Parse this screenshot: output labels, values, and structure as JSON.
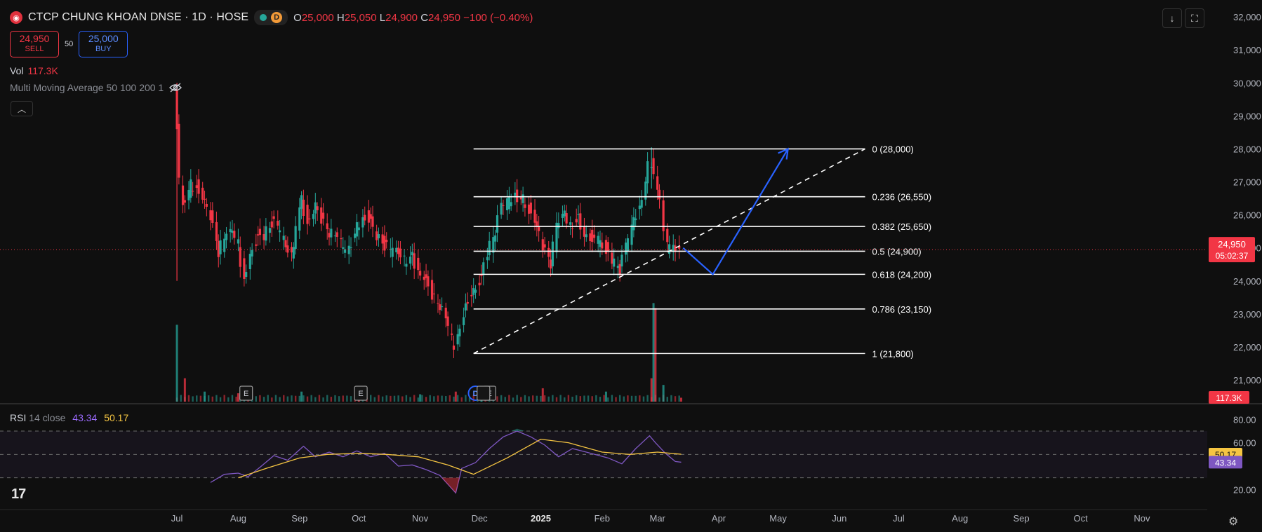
{
  "header": {
    "logo_icon": "dnse-logo-icon",
    "title": "CTCP CHUNG KHOAN DNSE · 1D · HOSE",
    "market_badge": "D",
    "ohlc": {
      "o_label": "O",
      "o": "25,000",
      "h_label": "H",
      "h": "25,050",
      "l_label": "L",
      "l": "24,900",
      "c_label": "C",
      "c": "24,950",
      "change": "−100 (−0.40%)"
    }
  },
  "trade": {
    "sell_price": "24,950",
    "sell_label": "SELL",
    "spread": "50",
    "buy_price": "25,000",
    "buy_label": "BUY"
  },
  "volume_legend": {
    "label": "Vol",
    "value": "117.3K"
  },
  "indicator": {
    "label": "Multi Moving Average 50 100 200 1",
    "visibility_icon": "eye-off-icon"
  },
  "top_buttons": [
    {
      "icon": "download-icon"
    },
    {
      "icon": "fullscreen-icon"
    }
  ],
  "rsi_legend": {
    "label": "RSI",
    "params": "14 close",
    "rsi": "43.34",
    "ma": "50.17"
  },
  "price_axis": [
    "32,000",
    "31,000",
    "30,000",
    "29,000",
    "28,000",
    "27,000",
    "26,000",
    "25,000",
    "24,000",
    "23,000",
    "22,000",
    "21,000"
  ],
  "rsi_axis": [
    "80.00",
    "60.00",
    "20.00"
  ],
  "time_axis": [
    "Jul",
    "Aug",
    "Sep",
    "Oct",
    "Nov",
    "Dec",
    "2025",
    "Feb",
    "Mar",
    "Apr",
    "May",
    "Jun",
    "Jul",
    "Aug",
    "Sep",
    "Oct",
    "Nov"
  ],
  "price_tag": {
    "price": "24,950",
    "countdown": "05:02:37"
  },
  "volume_tag": "117.3K",
  "rsi_tags": {
    "ma": "50.17",
    "rsi": "43.34"
  },
  "event_markers": [
    {
      "text": "E"
    },
    {
      "text": "E"
    },
    {
      "text": "D"
    },
    {
      "text": "E"
    }
  ],
  "colors": {
    "up": "#26a69a",
    "down": "#f23645",
    "rsi": "#7e57c2",
    "rsi_ma": "#f5c542",
    "projection": "#2962ff",
    "accent": "#2962ff"
  },
  "chart_data": {
    "type": "candlestick",
    "title": "CTCP CHUNG KHOAN DNSE · 1D · HOSE",
    "ylim": [
      20300,
      32300
    ],
    "x_range": [
      "2024-06-26",
      "2025-11-28"
    ],
    "price_series": [
      [
        "2024-07-01",
        28700
      ],
      [
        "2024-07-03",
        27000
      ],
      [
        "2024-07-05",
        26300
      ],
      [
        "2024-07-09",
        26900
      ],
      [
        "2024-07-12",
        26900
      ],
      [
        "2024-07-16",
        26500
      ],
      [
        "2024-07-19",
        26000
      ],
      [
        "2024-07-23",
        24900
      ],
      [
        "2024-07-26",
        25200
      ],
      [
        "2024-07-30",
        25500
      ],
      [
        "2024-08-02",
        25100
      ],
      [
        "2024-08-05",
        24000
      ],
      [
        "2024-08-08",
        24900
      ],
      [
        "2024-08-12",
        25400
      ],
      [
        "2024-08-15",
        25400
      ],
      [
        "2024-08-19",
        25800
      ],
      [
        "2024-08-22",
        25600
      ],
      [
        "2024-08-26",
        25000
      ],
      [
        "2024-08-29",
        24700
      ],
      [
        "2024-09-03",
        26500
      ],
      [
        "2024-09-06",
        25800
      ],
      [
        "2024-09-10",
        26400
      ],
      [
        "2024-09-13",
        25900
      ],
      [
        "2024-09-17",
        25500
      ],
      [
        "2024-09-20",
        25300
      ],
      [
        "2024-09-24",
        25000
      ],
      [
        "2024-09-27",
        24900
      ],
      [
        "2024-10-01",
        25600
      ],
      [
        "2024-10-04",
        26000
      ],
      [
        "2024-10-08",
        25900
      ],
      [
        "2024-10-11",
        25400
      ],
      [
        "2024-10-15",
        25100
      ],
      [
        "2024-10-18",
        24900
      ],
      [
        "2024-10-22",
        24800
      ],
      [
        "2024-10-25",
        24600
      ],
      [
        "2024-10-29",
        24700
      ],
      [
        "2024-11-01",
        24400
      ],
      [
        "2024-11-05",
        24100
      ],
      [
        "2024-11-08",
        23600
      ],
      [
        "2024-11-12",
        23300
      ],
      [
        "2024-11-15",
        22800
      ],
      [
        "2024-11-18",
        22200
      ],
      [
        "2024-11-19",
        21900
      ],
      [
        "2024-11-21",
        22500
      ],
      [
        "2024-11-25",
        23200
      ],
      [
        "2024-11-28",
        23700
      ],
      [
        "2024-12-03",
        24100
      ],
      [
        "2024-12-06",
        24800
      ],
      [
        "2024-12-10",
        25500
      ],
      [
        "2024-12-13",
        26200
      ],
      [
        "2024-12-17",
        26400
      ],
      [
        "2024-12-20",
        26600
      ],
      [
        "2024-12-24",
        26500
      ],
      [
        "2024-12-27",
        26200
      ],
      [
        "2024-12-31",
        25800
      ],
      [
        "2025-01-03",
        25000
      ],
      [
        "2025-01-07",
        24500
      ],
      [
        "2025-01-10",
        25600
      ],
      [
        "2025-01-14",
        26000
      ],
      [
        "2025-01-17",
        25700
      ],
      [
        "2025-01-21",
        25900
      ],
      [
        "2025-01-24",
        25500
      ],
      [
        "2025-02-04",
        25000
      ],
      [
        "2025-02-07",
        24600
      ],
      [
        "2025-02-11",
        24300
      ],
      [
        "2025-02-14",
        25000
      ],
      [
        "2025-02-18",
        25800
      ],
      [
        "2025-02-21",
        26200
      ],
      [
        "2025-02-25",
        27500
      ],
      [
        "2025-02-27",
        27600
      ],
      [
        "2025-03-03",
        26600
      ],
      [
        "2025-03-05",
        25400
      ],
      [
        "2025-03-07",
        25000
      ],
      [
        "2025-03-11",
        24900
      ],
      [
        "2025-03-13",
        24950
      ]
    ],
    "volume_series": [
      [
        "2024-07-01",
        2.3
      ],
      [
        "2024-07-05",
        0.7
      ],
      [
        "2024-07-15",
        0.3
      ],
      [
        "2024-08-01",
        0.25
      ],
      [
        "2024-09-02",
        0.3
      ],
      [
        "2024-10-01",
        0.2
      ],
      [
        "2024-11-01",
        0.22
      ],
      [
        "2024-11-19",
        0.3
      ],
      [
        "2024-12-02",
        0.3
      ],
      [
        "2025-01-02",
        0.4
      ],
      [
        "2025-02-03",
        0.3
      ],
      [
        "2025-02-26",
        0.7
      ],
      [
        "2025-02-27",
        2.95
      ],
      [
        "2025-02-28",
        2.8
      ],
      [
        "2025-03-04",
        0.5
      ],
      [
        "2025-03-13",
        0.117
      ]
    ],
    "volume_max": 3.0,
    "fibonacci": {
      "start": "2024-11-28",
      "end": "2025-06-14",
      "levels": [
        {
          "ratio": "0",
          "price": 28000,
          "label": "0 (28,000)"
        },
        {
          "ratio": "0.236",
          "price": 26550,
          "label": "0.236 (26,550)"
        },
        {
          "ratio": "0.382",
          "price": 25650,
          "label": "0.382 (25,650)"
        },
        {
          "ratio": "0.5",
          "price": 24900,
          "label": "0.5 (24,900)"
        },
        {
          "ratio": "0.618",
          "price": 24200,
          "label": "0.618 (24,200)"
        },
        {
          "ratio": "0.786",
          "price": 23150,
          "label": "0.786 (23,150)"
        },
        {
          "ratio": "1",
          "price": 21800,
          "label": "1 (21,800)"
        }
      ]
    },
    "trendline": [
      [
        "2024-11-28",
        21800
      ],
      [
        "2025-06-14",
        28000
      ]
    ],
    "projection": [
      [
        "2025-03-14",
        25000
      ],
      [
        "2025-03-29",
        24200
      ],
      [
        "2025-05-06",
        28000
      ]
    ],
    "current_price": 24950,
    "rsi_series": [
      [
        "2024-07-18",
        26
      ],
      [
        "2024-07-25",
        33
      ],
      [
        "2024-08-01",
        34
      ],
      [
        "2024-08-06",
        31
      ],
      [
        "2024-08-12",
        39
      ],
      [
        "2024-08-19",
        49
      ],
      [
        "2024-08-26",
        45
      ],
      [
        "2024-09-03",
        57
      ],
      [
        "2024-09-09",
        48
      ],
      [
        "2024-09-16",
        52
      ],
      [
        "2024-09-23",
        48
      ],
      [
        "2024-09-30",
        53
      ],
      [
        "2024-10-07",
        48
      ],
      [
        "2024-10-14",
        51
      ],
      [
        "2024-10-21",
        40
      ],
      [
        "2024-10-28",
        41
      ],
      [
        "2024-11-04",
        37
      ],
      [
        "2024-11-11",
        32
      ],
      [
        "2024-11-19",
        17
      ],
      [
        "2024-11-22",
        38
      ],
      [
        "2024-11-29",
        43
      ],
      [
        "2024-12-06",
        55
      ],
      [
        "2024-12-13",
        65
      ],
      [
        "2024-12-20",
        70
      ],
      [
        "2024-12-27",
        65
      ],
      [
        "2025-01-03",
        58
      ],
      [
        "2025-01-10",
        48
      ],
      [
        "2025-01-17",
        55
      ],
      [
        "2025-01-24",
        52
      ],
      [
        "2025-02-04",
        47
      ],
      [
        "2025-02-11",
        42
      ],
      [
        "2025-02-18",
        55
      ],
      [
        "2025-02-25",
        66
      ],
      [
        "2025-02-28",
        60
      ],
      [
        "2025-03-05",
        51
      ],
      [
        "2025-03-10",
        44
      ],
      [
        "2025-03-13",
        43.34
      ]
    ],
    "rsi_ma_series": [
      [
        "2024-08-01",
        30
      ],
      [
        "2024-08-15",
        38
      ],
      [
        "2024-09-01",
        47
      ],
      [
        "2024-09-15",
        50
      ],
      [
        "2024-10-01",
        51
      ],
      [
        "2024-10-15",
        50
      ],
      [
        "2024-10-31",
        48
      ],
      [
        "2024-11-15",
        41
      ],
      [
        "2024-11-28",
        33
      ],
      [
        "2024-12-15",
        47
      ],
      [
        "2025-01-01",
        63
      ],
      [
        "2025-01-15",
        60
      ],
      [
        "2025-02-01",
        52
      ],
      [
        "2025-02-15",
        50
      ],
      [
        "2025-03-01",
        52
      ],
      [
        "2025-03-13",
        50.17
      ]
    ],
    "rsi_ylim": [
      10,
      85
    ],
    "rsi_levels": [
      70,
      50,
      30
    ]
  }
}
